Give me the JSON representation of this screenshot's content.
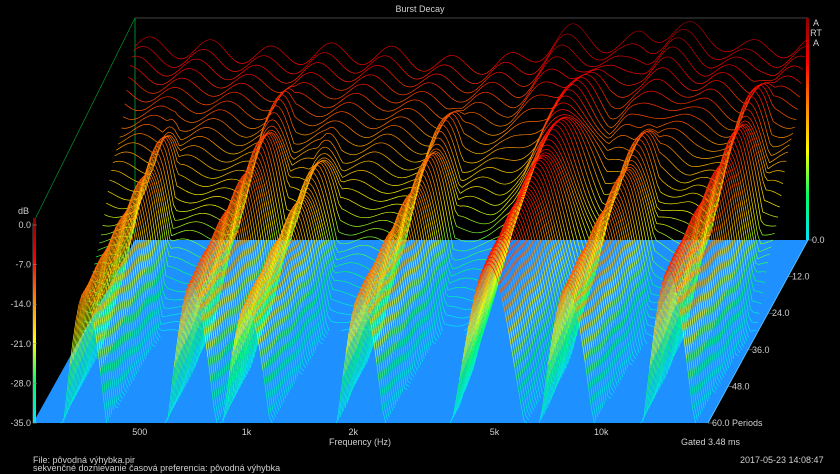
{
  "chart_data": {
    "type": "waterfall-3d",
    "title": "Burst Decay",
    "brand": "ARTA",
    "xlabel": "Frequency (Hz)",
    "x_ticks": [
      "500",
      "1k",
      "2k",
      "5k",
      "10k"
    ],
    "x_tick_values": [
      500,
      1000,
      2000,
      5000,
      10000
    ],
    "xlim": [
      250,
      20000
    ],
    "x_scale": "log",
    "z_label": "dB",
    "z_ticks": [
      "0.0",
      "-7.0",
      "-14.0",
      "-21.0",
      "-28.0",
      "-35.0"
    ],
    "zlim": [
      -35,
      0
    ],
    "y_ticks": [
      "0.0",
      "12.0",
      "24.0",
      "36.0",
      "48.0",
      "60.0 Periods"
    ],
    "ylim": [
      0,
      60
    ],
    "colormap": [
      "#00e5ff",
      "#00ff66",
      "#ffff00",
      "#ff8800",
      "#ff0000",
      "#8b0000"
    ],
    "floor_color": "#1e90ff",
    "slice_count": 60,
    "gating": "Gated 3.48 ms",
    "first_slice_db": [
      {
        "f": 250,
        "db": -4.5
      },
      {
        "f": 400,
        "db": -5.0
      },
      {
        "f": 600,
        "db": -6.0
      },
      {
        "f": 900,
        "db": -5.5
      },
      {
        "f": 1300,
        "db": -6.0
      },
      {
        "f": 2000,
        "db": -7.5
      },
      {
        "f": 3000,
        "db": -7.0
      },
      {
        "f": 4300,
        "db": -2.5
      },
      {
        "f": 6000,
        "db": -4.5
      },
      {
        "f": 7000,
        "db": -3.0
      },
      {
        "f": 8500,
        "db": -1.5
      },
      {
        "f": 11000,
        "db": -3.5
      },
      {
        "f": 14000,
        "db": -5.0
      },
      {
        "f": 20000,
        "db": -4.5
      }
    ],
    "decay_ridges": [
      {
        "f": 350,
        "db": -12,
        "periods": 10
      },
      {
        "f": 700,
        "db": -10,
        "periods": 14
      },
      {
        "f": 1000,
        "db": -14,
        "periods": 20
      },
      {
        "f": 2100,
        "db": -12,
        "periods": 16
      },
      {
        "f": 4800,
        "db": -7,
        "periods": 34
      },
      {
        "f": 8000,
        "db": -11,
        "periods": 22
      },
      {
        "f": 15500,
        "db": -8,
        "periods": 14
      }
    ]
  },
  "footer": {
    "file_line": "File: pôvodná výhybka.pir",
    "desc_line": "sekvenčné doznievanie časová preferencia: pôvodná výhybka",
    "timestamp": "2017-05-23  14:08:47"
  },
  "colors": {
    "background": "#000000",
    "axis": "#8a8a8a",
    "text": "#cfcfcf",
    "floor_edge": "#66ccff",
    "axis_walls": "#00aa33"
  }
}
